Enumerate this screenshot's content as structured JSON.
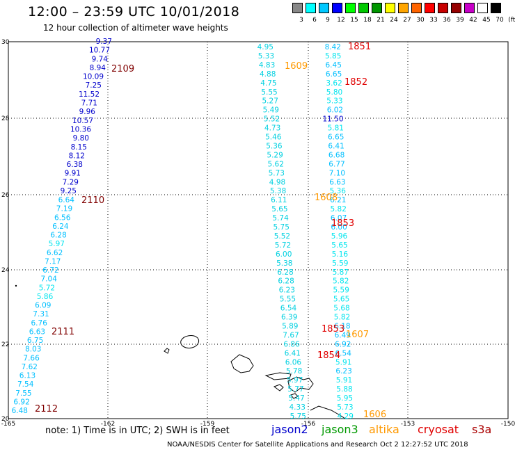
{
  "header": {
    "title": "12:00 – 23:59 UTC 10/01/2018",
    "subtitle": "12 hour collection of altimeter wave heights"
  },
  "legend": {
    "colors": [
      "#888888",
      "#00ffff",
      "#00c8ff",
      "#0000ff",
      "#00ff00",
      "#00c800",
      "#009600",
      "#ffff00",
      "#ffa500",
      "#ff6400",
      "#ff0000",
      "#c80000",
      "#960000",
      "#c800c8",
      "#ffffff",
      "#000000"
    ],
    "labels": [
      "3",
      "6",
      "9",
      "12",
      "15",
      "18",
      "21",
      "24",
      "27",
      "30",
      "33",
      "36",
      "39",
      "42",
      "45",
      "70",
      "(ft)"
    ]
  },
  "axes": {
    "x_ticks": [
      "-165",
      "-162",
      "-159",
      "-156",
      "-153",
      "-150"
    ],
    "y_ticks": [
      "30",
      "28",
      "26",
      "24",
      "22",
      "20"
    ]
  },
  "tracks": {
    "west": {
      "dark": [
        "9.37",
        "10.77",
        "9.74",
        "8.94",
        "10.09",
        "7.25",
        "11.52",
        "7.71",
        "9.96",
        "10.57",
        "10.36",
        "9.80",
        "8.15",
        "8.12",
        "6.38",
        "9.91",
        "7.29",
        "9.25"
      ],
      "light": [
        "6.64",
        "7.19",
        "6.56",
        "6.24",
        "6.28",
        "5.97",
        "6.62",
        "7.17",
        "6.72",
        "7.04",
        "5.72",
        "5.86",
        "6.09",
        "7.31",
        "6.76",
        "6.63",
        "6.75",
        "8.03",
        "7.66",
        "7.62",
        "6.13",
        "7.54",
        "7.55",
        "6.92",
        "6.48"
      ]
    },
    "mid": [
      "4.95",
      "5.33",
      "4.83",
      "4.88",
      "4.75",
      "5.55",
      "5.27",
      "5.49",
      "5.52",
      "4.73",
      "5.46",
      "5.36",
      "5.29",
      "5.62",
      "5.73",
      "4.98",
      "5.38",
      "6.11",
      "5.65",
      "5.74",
      "5.75",
      "5.52",
      "5.72",
      "6.00",
      "5.38",
      "6.28",
      "6.28",
      "6.23",
      "5.55",
      "6.54",
      "6.39",
      "5.89",
      "7.67",
      "6.86",
      "6.41",
      "6.06",
      "5.78",
      "5.97",
      "5.77",
      "5.47",
      "4.33",
      "5.75"
    ],
    "east": [
      "8.42",
      "5.85",
      "6.45",
      "6.65",
      "3.62",
      "5.80",
      "5.33",
      "6.02",
      "11.50",
      "5.81",
      "6.65",
      "6.41",
      "6.68",
      "6.77",
      "7.10",
      "6.63",
      "5.36",
      "6.21",
      "5.82",
      "6.07",
      "6.00",
      "5.96",
      "5.65",
      "5.16",
      "5.59",
      "5.87",
      "5.82",
      "5.59",
      "5.65",
      "5.68",
      "5.82",
      "6.18",
      "6.49",
      "6.92",
      "6.54",
      "5.91",
      "6.23",
      "5.91",
      "5.88",
      "5.95",
      "5.73",
      "4.29"
    ]
  },
  "time_labels": [
    {
      "text": "1851",
      "color": "#e00000"
    },
    {
      "text": "1609",
      "color": "#ff9900"
    },
    {
      "text": "1852",
      "color": "#e00000"
    },
    {
      "text": "2109",
      "color": "#800000"
    },
    {
      "text": "2110",
      "color": "#800000"
    },
    {
      "text": "1608",
      "color": "#ff9900"
    },
    {
      "text": "1853",
      "color": "#e00000"
    },
    {
      "text": "2111",
      "color": "#800000"
    },
    {
      "text": "1853",
      "color": "#e00000"
    },
    {
      "text": "1607",
      "color": "#ff9900"
    },
    {
      "text": "1854",
      "color": "#e00000"
    },
    {
      "text": "2112",
      "color": "#800000"
    },
    {
      "text": "1606",
      "color": "#ff9900"
    }
  ],
  "footer": {
    "note": "note:  1) Time is in UTC;  2) SWH is in feet",
    "missions": [
      {
        "name": "jason2",
        "color": "#0000cc"
      },
      {
        "name": "jason3",
        "color": "#009900"
      },
      {
        "name": "altika",
        "color": "#ff9900"
      },
      {
        "name": "cryosat",
        "color": "#e00000"
      },
      {
        "name": "s3a",
        "color": "#aa0000"
      }
    ],
    "credit": "NOAA/NESDIS Center for Satellite Applications and Research     Oct  2 12:27:52 UTC 2018"
  }
}
